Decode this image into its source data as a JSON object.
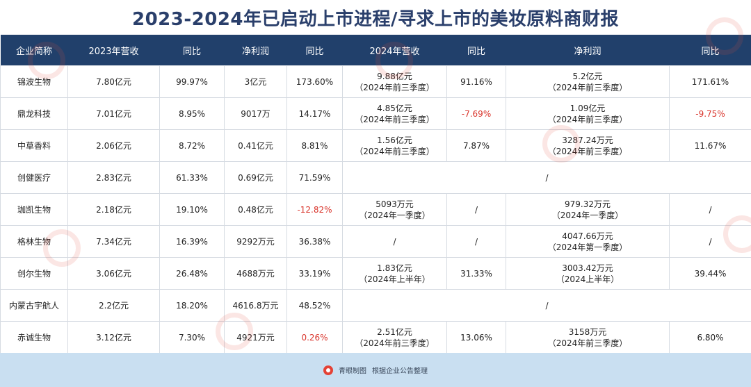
{
  "title": "2023-2024年已启动上市进程/寻求上市的美妆原料商财报",
  "headers": [
    "企业简称",
    "2023年营收",
    "同比",
    "净利润",
    "同比",
    "2024年营收",
    "同比",
    "净利润",
    "同比"
  ],
  "rows": [
    {
      "name": "锦波生物",
      "rev23": "7.80亿元",
      "yoy1": "99.97%",
      "np23": "3亿元",
      "yoy2": "173.60%",
      "rev24": "9.88亿元",
      "rev24_note": "（2024年前三季度）",
      "yoy3": "91.16%",
      "np24": "5.2亿元",
      "np24_note": "（2024年前三季度）",
      "yoy4": "171.61%"
    },
    {
      "name": "鼎龙科技",
      "rev23": "7.01亿元",
      "yoy1": "8.95%",
      "np23": "9017万",
      "yoy2": "14.17%",
      "rev24": "4.85亿元",
      "rev24_note": "（2024年前三季度）",
      "yoy3": "-7.69%",
      "np24": "1.09亿元",
      "np24_note": "（2024年前三季度）",
      "yoy4": "-9.75%"
    },
    {
      "name": "中草香料",
      "rev23": "2.06亿元",
      "yoy1": "8.72%",
      "np23": "0.41亿元",
      "yoy2": "8.81%",
      "rev24": "1.56亿元",
      "rev24_note": "（2024年前三季度）",
      "yoy3": "7.87%",
      "np24": "3287.24万元",
      "np24_note": "（2024年前三季度）",
      "yoy4": "11.67%"
    },
    {
      "name": "创健医疗",
      "rev23": "2.83亿元",
      "yoy1": "61.33%",
      "np23": "0.69亿元",
      "yoy2": "71.59%",
      "merged": "/"
    },
    {
      "name": "珈凯生物",
      "rev23": "2.18亿元",
      "yoy1": "19.10%",
      "np23": "0.48亿元",
      "yoy2": "-12.82%",
      "rev24": "5093万元",
      "rev24_note": "（2024年一季度）",
      "yoy3": "/",
      "np24": "979.32万元",
      "np24_note": "（2024年一季度）",
      "yoy4": "/"
    },
    {
      "name": "格林生物",
      "rev23": "7.34亿元",
      "yoy1": "16.39%",
      "np23": "9292万元",
      "yoy2": "36.38%",
      "rev24": "/",
      "rev24_note": "",
      "yoy3": "/",
      "np24": "4047.66万元",
      "np24_note": "（2024年第一季度）",
      "yoy4": "/"
    },
    {
      "name": "创尔生物",
      "rev23": "3.06亿元",
      "yoy1": "26.48%",
      "np23": "4688万元",
      "yoy2": "33.19%",
      "rev24": "1.83亿元",
      "rev24_note": "（2024年上半年）",
      "yoy3": "31.33%",
      "np24": "3003.42万元",
      "np24_note": "（2024上半年）",
      "yoy4": "39.44%"
    },
    {
      "name": "内蒙古宇航人",
      "rev23": "2.2亿元",
      "yoy1": "18.20%",
      "np23": "4616.8万元",
      "yoy2": "48.52%",
      "merged": "/"
    },
    {
      "name": "赤诚生物",
      "rev23": "3.12亿元",
      "yoy1": "7.30%",
      "np23": "4921万元",
      "yoy2": "0.26%",
      "rev24": "2.51亿元",
      "rev24_note": "（2024年前三季度）",
      "yoy3": "13.06%",
      "np24": "3158万元",
      "np24_note": "（2024年前三季度）",
      "yoy4": "6.80%"
    }
  ],
  "footer": {
    "brand": "青眼制图",
    "source": "根据企业公告整理",
    "logo_text": "青眼"
  },
  "colors": {
    "header_bg": "#21406b",
    "title": "#2a3f6b",
    "negative": "#d9342b",
    "footer_bg": "#c9dff1",
    "logo": "#e44236"
  }
}
